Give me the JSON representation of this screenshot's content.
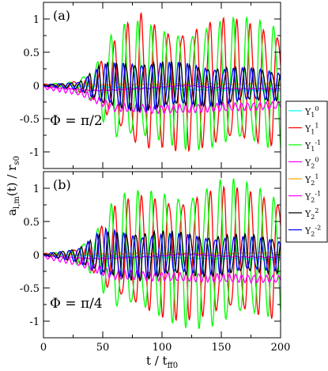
{
  "figure": {
    "ylabel": "a",
    "ylabel_sub": "l,m",
    "ylabel_rest": "(t) / r",
    "ylabel_sub2": "s0",
    "xlabel": "t / t",
    "xlabel_sub": "ff0"
  },
  "legend": {
    "placement": "right",
    "entries": [
      {
        "base": "Y",
        "sub": "1",
        "sup": "0",
        "color": "#00ffff"
      },
      {
        "base": "Y",
        "sub": "1",
        "sup": "1",
        "color": "#ff0000"
      },
      {
        "base": "Y",
        "sub": "1",
        "sup": "-1",
        "color": "#00ff00"
      },
      {
        "base": "Y",
        "sub": "2",
        "sup": "0",
        "color": "#ff00ff"
      },
      {
        "base": "Y",
        "sub": "2",
        "sup": "1",
        "color": "#ffa500"
      },
      {
        "base": "Y",
        "sub": "2",
        "sup": "-1",
        "color": "#ff00ff"
      },
      {
        "base": "Y",
        "sub": "2",
        "sup": "2",
        "color": "#000000"
      },
      {
        "base": "Y",
        "sub": "2",
        "sup": "-2",
        "color": "#0000ff"
      }
    ]
  },
  "chart_data": [
    {
      "type": "line",
      "panel_label": "(a)",
      "annotation": "Φ = π/2",
      "xlim": [
        0,
        200
      ],
      "ylim": [
        -1.25,
        1.25
      ],
      "xticks": [
        0,
        50,
        100,
        150,
        200
      ],
      "yticks": [
        -1,
        -0.5,
        0,
        0.5,
        1
      ],
      "ytick_labels": [
        "-1",
        "-0.5",
        "0",
        "0.5",
        "1"
      ],
      "xtick_labels": [],
      "series": [
        {
          "key": "y10",
          "color": "#00ffff",
          "t": [
            0,
            50,
            100,
            150,
            200
          ],
          "v": [
            0,
            -0.02,
            -0.05,
            -0.07,
            -0.08
          ]
        },
        {
          "key": "y11",
          "color": "#ff0000",
          "envelope": {
            "t": [
              0,
              20,
              40,
              60,
              80,
              100,
              150,
              200
            ],
            "amp": [
              0.02,
              0.03,
              0.15,
              0.6,
              1.0,
              0.85,
              0.9,
              0.8
            ]
          },
          "period": 11.5,
          "phase": 0.4,
          "offset": 0
        },
        {
          "key": "y1m1",
          "color": "#00ff00",
          "envelope": {
            "t": [
              0,
              20,
              40,
              60,
              80,
              100,
              150,
              200
            ],
            "amp": [
              0.02,
              0.04,
              0.2,
              0.8,
              0.85,
              0.8,
              0.9,
              0.9
            ]
          },
          "period": 11.5,
          "phase": 2.1,
          "offset": 0
        },
        {
          "key": "y20",
          "color": "#ff00ff",
          "t": [
            0,
            40,
            80,
            120,
            160,
            200
          ],
          "v": [
            -0.02,
            -0.08,
            -0.05,
            0.0,
            -0.05,
            -0.05
          ]
        },
        {
          "key": "y21",
          "color": "#ffa500",
          "t": [
            0,
            50,
            100,
            150,
            200
          ],
          "v": [
            0,
            0.01,
            0.02,
            0.02,
            0.03
          ]
        },
        {
          "key": "y2m1",
          "color": "#ff00ff",
          "envelope": {
            "t": [
              0,
              30,
              60,
              100,
              150,
              200
            ],
            "amp": [
              0.02,
              0.05,
              0.06,
              0.06,
              0.06,
              0.05
            ]
          },
          "period": 5.2,
          "phase": 0.9,
          "offset": -0.33,
          "offset_t": [
            0,
            30,
            60,
            100,
            200
          ],
          "offset_v": [
            -0.03,
            -0.1,
            -0.33,
            -0.36,
            -0.3
          ]
        },
        {
          "key": "y22",
          "color": "#000000",
          "envelope": {
            "t": [
              0,
              30,
              50,
              80,
              120,
              160,
              200
            ],
            "amp": [
              0.01,
              0.05,
              0.3,
              0.35,
              0.3,
              0.25,
              0.2
            ]
          },
          "period": 7.7,
          "phase": 1.4,
          "offset": 0
        },
        {
          "key": "y2m2",
          "color": "#0000ff",
          "envelope": {
            "t": [
              0,
              30,
              50,
              80,
              120,
              160,
              200
            ],
            "amp": [
              0.01,
              0.05,
              0.28,
              0.35,
              0.3,
              0.25,
              0.2
            ]
          },
          "period": 7.7,
          "phase": 3.0,
          "offset": 0
        }
      ]
    },
    {
      "type": "line",
      "panel_label": "(b)",
      "annotation": "Φ = π/4",
      "xlim": [
        0,
        200
      ],
      "ylim": [
        -1.25,
        1.25
      ],
      "xticks": [
        0,
        50,
        100,
        150,
        200
      ],
      "yticks": [
        -1,
        -0.5,
        0,
        0.5,
        1
      ],
      "ytick_labels": [
        "-1",
        "-0.5",
        "0",
        "0.5",
        "1"
      ],
      "xtick_labels": [
        "0",
        "50",
        "100",
        "150",
        "200"
      ],
      "series": [
        {
          "key": "y10",
          "color": "#00ffff",
          "t": [
            0,
            50,
            100,
            150,
            200
          ],
          "v": [
            0,
            -0.02,
            -0.04,
            -0.06,
            -0.07
          ]
        },
        {
          "key": "y11",
          "color": "#ff0000",
          "envelope": {
            "t": [
              0,
              20,
              40,
              60,
              80,
              100,
              150,
              200
            ],
            "amp": [
              0.02,
              0.03,
              0.2,
              0.65,
              0.8,
              0.85,
              0.9,
              0.85
            ]
          },
          "period": 11.5,
          "phase": 0.2,
          "offset": 0
        },
        {
          "key": "y1m1",
          "color": "#00ff00",
          "envelope": {
            "t": [
              0,
              20,
              40,
              60,
              80,
              100,
              150,
              200
            ],
            "amp": [
              0.02,
              0.04,
              0.25,
              0.8,
              0.85,
              0.9,
              1.05,
              0.85
            ]
          },
          "period": 11.5,
          "phase": 2.0,
          "offset": 0
        },
        {
          "key": "y20",
          "color": "#ff00ff",
          "t": [
            0,
            40,
            80,
            120,
            160,
            200
          ],
          "v": [
            -0.02,
            -0.06,
            -0.04,
            0.01,
            -0.03,
            -0.04
          ]
        },
        {
          "key": "y21",
          "color": "#ffa500",
          "t": [
            0,
            50,
            100,
            150,
            200
          ],
          "v": [
            0,
            0.01,
            0.02,
            0.02,
            0.03
          ]
        },
        {
          "key": "y2m1",
          "color": "#ff00ff",
          "envelope": {
            "t": [
              0,
              30,
              60,
              100,
              150,
              200
            ],
            "amp": [
              0.02,
              0.05,
              0.07,
              0.06,
              0.06,
              0.05
            ]
          },
          "period": 5.2,
          "phase": 0.5,
          "offset": -0.3,
          "offset_t": [
            0,
            30,
            60,
            100,
            200
          ],
          "offset_v": [
            -0.03,
            -0.12,
            -0.3,
            -0.33,
            -0.37
          ]
        },
        {
          "key": "y22",
          "color": "#000000",
          "envelope": {
            "t": [
              0,
              30,
              50,
              80,
              120,
              160,
              200
            ],
            "amp": [
              0.01,
              0.1,
              0.3,
              0.35,
              0.3,
              0.28,
              0.25
            ]
          },
          "period": 7.7,
          "phase": 1.0,
          "offset": 0
        },
        {
          "key": "y2m2",
          "color": "#0000ff",
          "envelope": {
            "t": [
              0,
              30,
              50,
              80,
              120,
              160,
              200
            ],
            "amp": [
              0.01,
              0.1,
              0.35,
              0.3,
              0.28,
              0.25,
              0.22
            ]
          },
          "period": 7.7,
          "phase": 2.6,
          "offset": 0
        }
      ]
    }
  ]
}
